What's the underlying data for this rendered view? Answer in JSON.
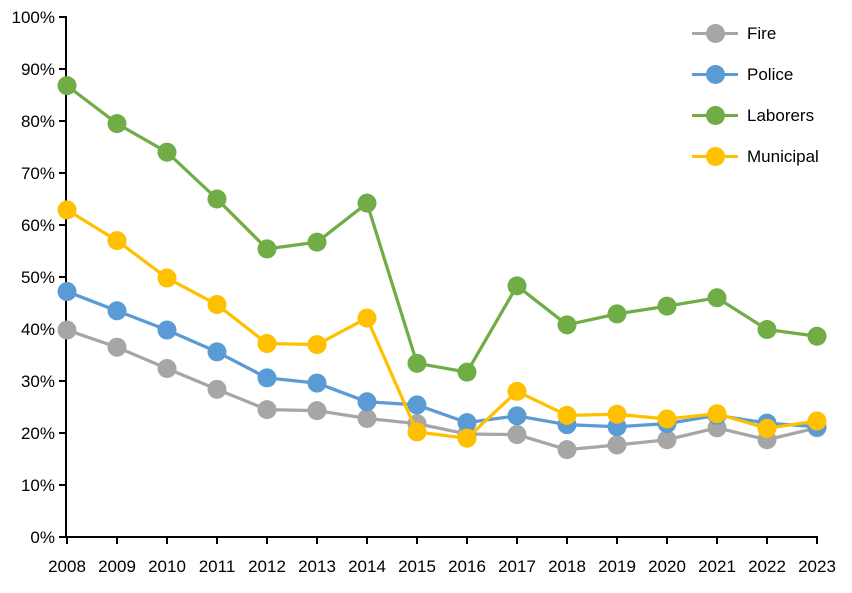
{
  "chart_data": {
    "type": "line",
    "title": "",
    "xlabel": "",
    "ylabel": "",
    "x": [
      2008,
      2009,
      2010,
      2011,
      2012,
      2013,
      2014,
      2015,
      2016,
      2017,
      2018,
      2019,
      2020,
      2021,
      2022,
      2023
    ],
    "ylim": [
      0,
      100
    ],
    "ytick_step": 10,
    "ytick_suffix": "%",
    "grid": false,
    "legend_position": "top-right",
    "axis_color": "#000000",
    "series": [
      {
        "name": "Fire",
        "color": "#A6A6A6",
        "values": [
          39.8,
          36.5,
          32.4,
          28.4,
          24.5,
          24.3,
          22.8,
          21.8,
          19.8,
          19.7,
          16.8,
          17.7,
          18.7,
          21.0,
          18.7,
          21.0
        ]
      },
      {
        "name": "Police",
        "color": "#5B9BD5",
        "values": [
          47.2,
          43.5,
          39.8,
          35.6,
          30.6,
          29.6,
          26.0,
          25.4,
          22.0,
          23.3,
          21.6,
          21.2,
          21.8,
          23.4,
          21.9,
          21.2
        ]
      },
      {
        "name": "Laborers",
        "color": "#70AD47",
        "values": [
          86.8,
          79.5,
          74.0,
          65.0,
          55.4,
          56.7,
          64.2,
          33.4,
          31.7,
          48.3,
          40.8,
          42.9,
          44.4,
          46.0,
          39.9,
          38.6
        ]
      },
      {
        "name": "Municipal",
        "color": "#FFC000",
        "values": [
          62.9,
          57.0,
          49.8,
          44.7,
          37.2,
          37.0,
          42.1,
          20.2,
          19.0,
          28.0,
          23.4,
          23.6,
          22.7,
          23.7,
          20.9,
          22.3
        ]
      }
    ]
  }
}
